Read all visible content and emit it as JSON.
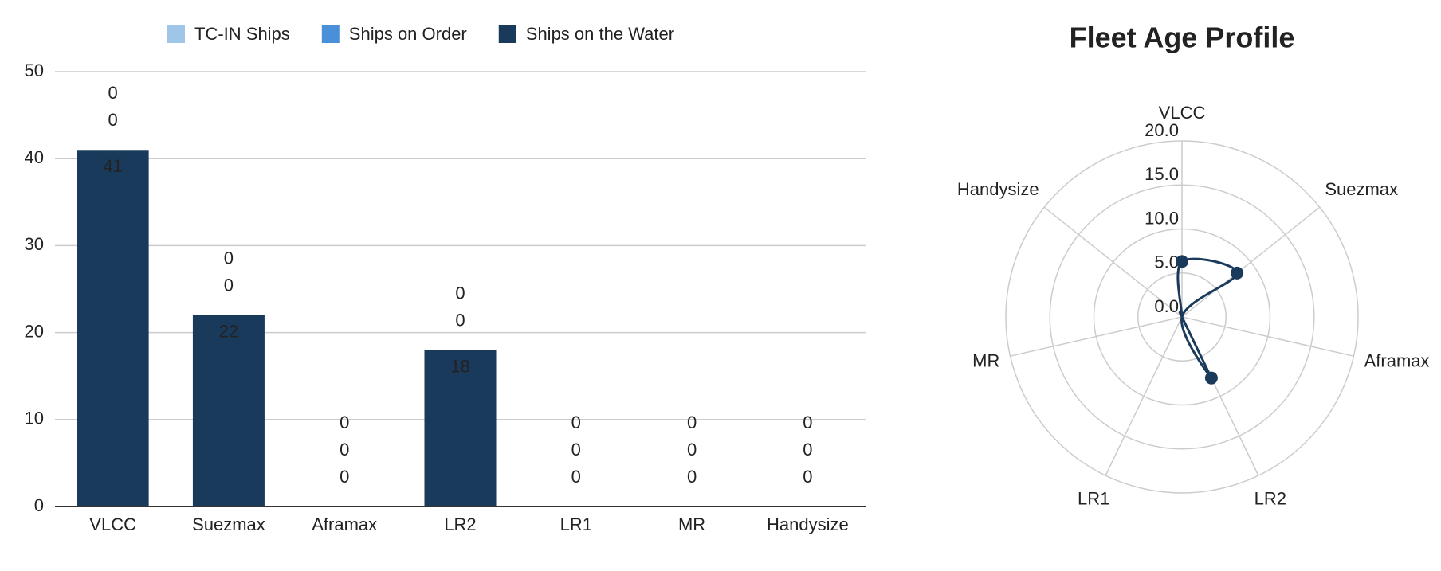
{
  "chart_data": [
    {
      "type": "stacked-bar",
      "categories": [
        "VLCC",
        "Suezmax",
        "Aframax",
        "LR2",
        "LR1",
        "MR",
        "Handysize"
      ],
      "series": [
        {
          "name": "Ships on the Water",
          "color": "#1a3a5c",
          "values": [
            41,
            22,
            0,
            18,
            0,
            0,
            0
          ]
        },
        {
          "name": "Ships on Order",
          "color": "#4a90d9",
          "values": [
            0,
            0,
            0,
            0,
            0,
            0,
            0
          ]
        },
        {
          "name": "TC-IN Ships",
          "color": "#9fc5e8",
          "values": [
            0,
            0,
            0,
            0,
            0,
            0,
            0
          ]
        }
      ],
      "ylim": [
        0,
        50
      ],
      "yticks": [
        0,
        10,
        20,
        30,
        40,
        50
      ],
      "grid": true,
      "legend": "top"
    },
    {
      "type": "radar",
      "title": "Fleet Age Profile",
      "categories": [
        "VLCC",
        "Suezmax",
        "Aframax",
        "LR2",
        "LR1",
        "MR",
        "Handysize"
      ],
      "series": [
        {
          "color": "#1a3a5c",
          "values": [
            6.3,
            8.0,
            0,
            7.7,
            0,
            0,
            0
          ]
        }
      ],
      "ylim": [
        0,
        20
      ],
      "yticks": [
        {
          "value": 0,
          "label": "0.0"
        },
        {
          "value": 5,
          "label": "5.0"
        },
        {
          "value": 10,
          "label": "10.0"
        },
        {
          "value": 15,
          "label": "15.0"
        },
        {
          "value": 20,
          "label": "20.0"
        }
      ]
    }
  ]
}
